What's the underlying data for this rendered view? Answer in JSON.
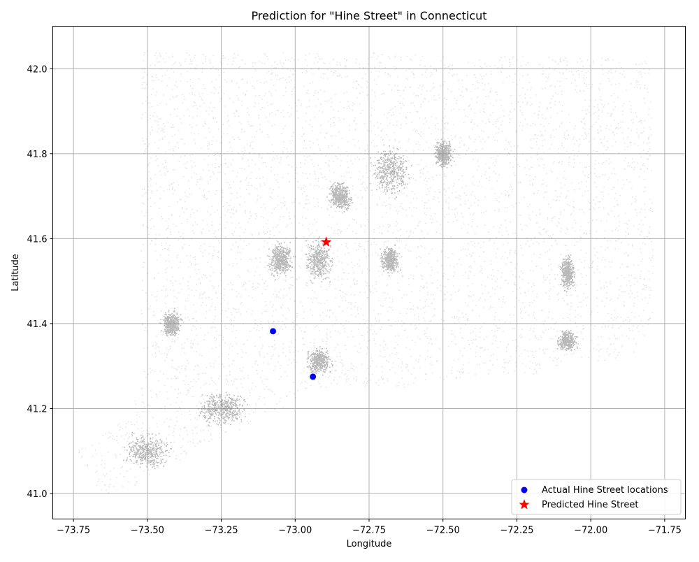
{
  "chart_data": {
    "type": "scatter",
    "title": "Prediction for \"Hine Street\" in Connecticut",
    "xlabel": "Longitude",
    "ylabel": "Latitude",
    "xlim": [
      -73.82,
      -71.68
    ],
    "ylim": [
      40.94,
      42.1
    ],
    "xticks": [
      -73.75,
      -73.5,
      -73.25,
      -73.0,
      -72.75,
      -72.5,
      -72.25,
      -72.0,
      -71.75
    ],
    "xtick_labels": [
      "−73.75",
      "−73.50",
      "−73.25",
      "−73.00",
      "−72.75",
      "−72.50",
      "−72.25",
      "−72.00",
      "−71.75"
    ],
    "yticks": [
      41.0,
      41.2,
      41.4,
      41.6,
      41.8,
      42.0
    ],
    "ytick_labels": [
      "41.0",
      "41.2",
      "41.4",
      "41.6",
      "41.8",
      "42.0"
    ],
    "grid": true,
    "legend_position": "bottom-right",
    "background_points_color": "#808080",
    "series": [
      {
        "name": "Actual Hine Street locations",
        "marker": "circle",
        "color": "#0000ff",
        "points": [
          {
            "x": -73.075,
            "y": 41.382
          },
          {
            "x": -72.94,
            "y": 41.275
          }
        ]
      },
      {
        "name": "Predicted Hine Street",
        "marker": "star",
        "color": "#ff0000",
        "points": [
          {
            "x": -72.895,
            "y": 41.592
          }
        ]
      }
    ]
  }
}
